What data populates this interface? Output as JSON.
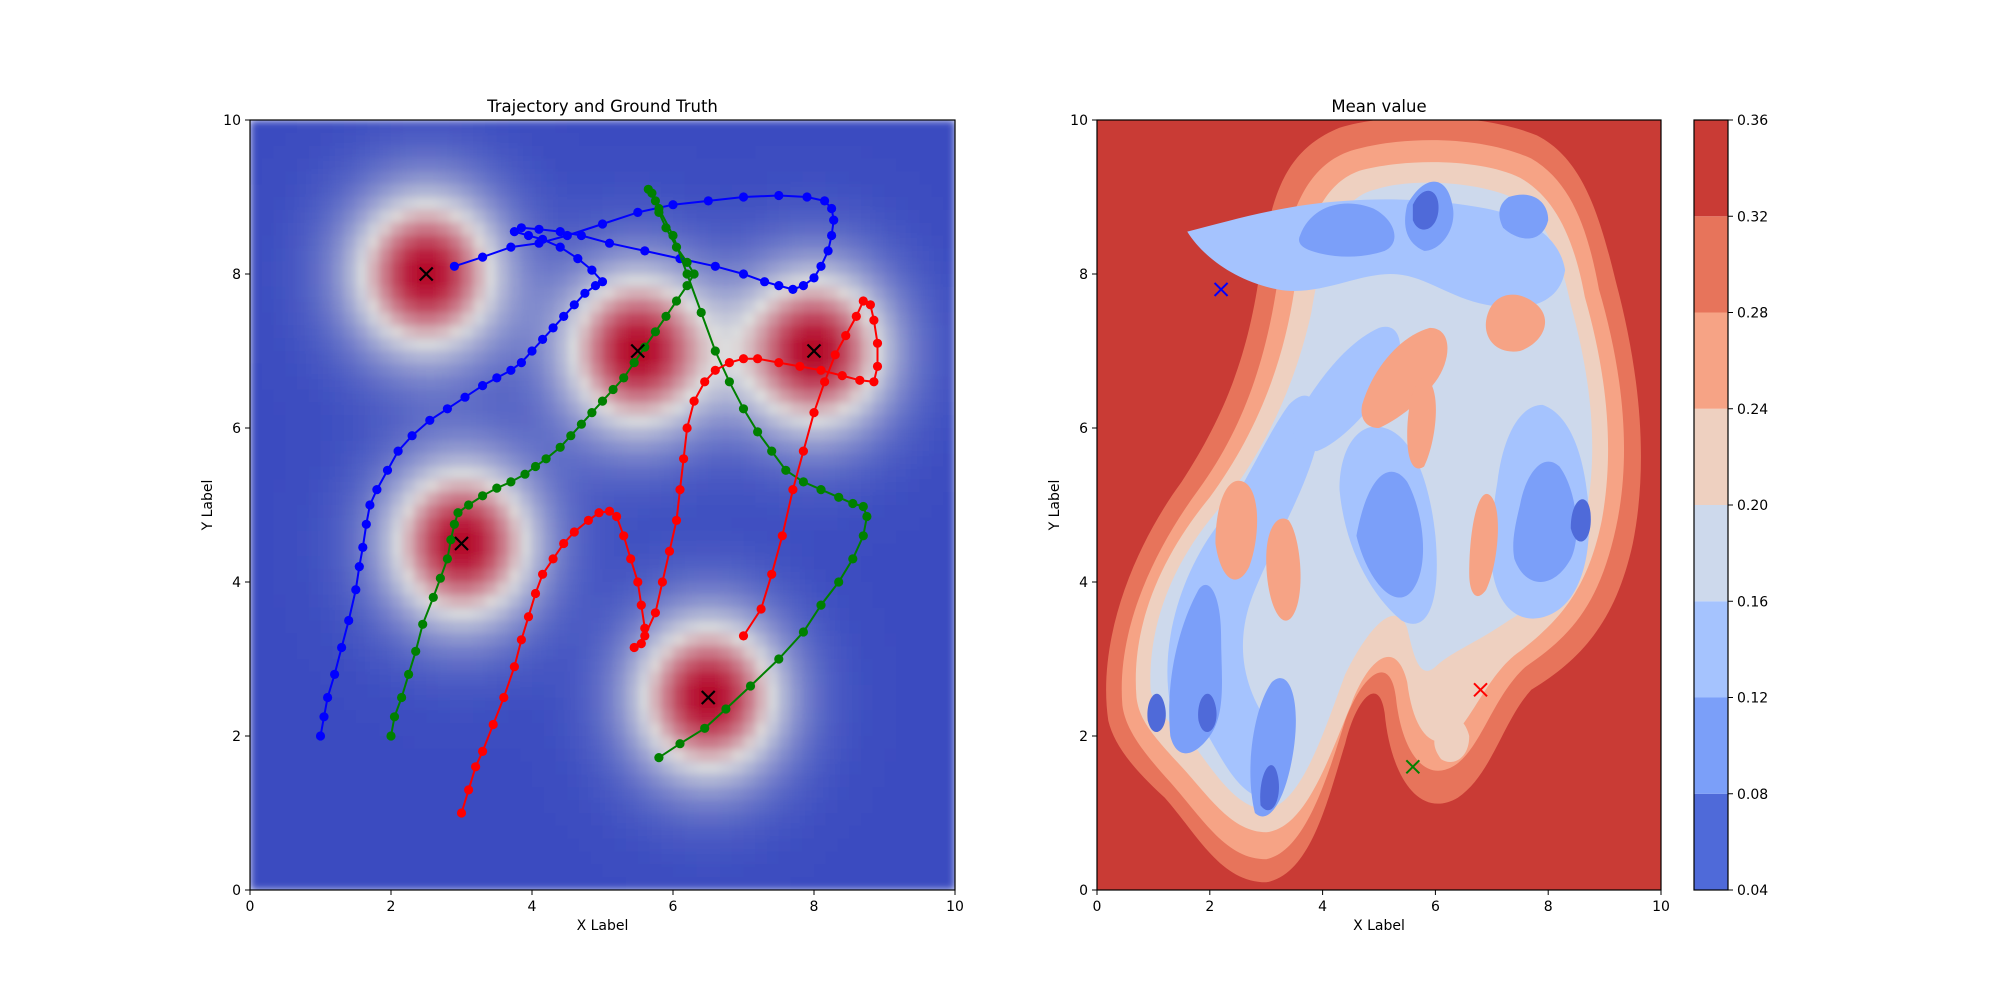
{
  "colors": {
    "cool": "#3b4cc0",
    "mid": "#dddddd",
    "warm": "#b40426",
    "blue_series": "#0000ff",
    "green_series": "#008000",
    "red_series": "#ff0000",
    "target_marker": "#000000"
  },
  "chart_data": [
    {
      "type": "line",
      "title": "Trajectory and Ground Truth",
      "xlabel": "X Label",
      "ylabel": "Y Label",
      "xlim": [
        0,
        10
      ],
      "ylim": [
        0,
        10
      ],
      "xticks": [
        0,
        2,
        4,
        6,
        8,
        10
      ],
      "yticks": [
        0,
        2,
        4,
        6,
        8,
        10
      ],
      "background": "heatmap (coolwarm) of Gaussian bumps centred on the ground-truth points",
      "ground_truth": [
        {
          "x": 2.5,
          "y": 8.0
        },
        {
          "x": 5.5,
          "y": 7.0
        },
        {
          "x": 8.0,
          "y": 7.0
        },
        {
          "x": 3.0,
          "y": 4.5
        },
        {
          "x": 6.5,
          "y": 2.5
        }
      ],
      "series": [
        {
          "color": "blue",
          "points": [
            [
              1.0,
              2.0
            ],
            [
              1.05,
              2.25
            ],
            [
              1.1,
              2.5
            ],
            [
              1.2,
              2.8
            ],
            [
              1.3,
              3.15
            ],
            [
              1.4,
              3.5
            ],
            [
              1.5,
              3.9
            ],
            [
              1.55,
              4.2
            ],
            [
              1.6,
              4.45
            ],
            [
              1.65,
              4.75
            ],
            [
              1.7,
              5.0
            ],
            [
              1.8,
              5.2
            ],
            [
              1.95,
              5.45
            ],
            [
              2.1,
              5.7
            ],
            [
              2.3,
              5.9
            ],
            [
              2.55,
              6.1
            ],
            [
              2.8,
              6.25
            ],
            [
              3.05,
              6.4
            ],
            [
              3.3,
              6.55
            ],
            [
              3.5,
              6.65
            ],
            [
              3.7,
              6.75
            ],
            [
              3.85,
              6.85
            ],
            [
              4.0,
              7.0
            ],
            [
              4.15,
              7.15
            ],
            [
              4.3,
              7.3
            ],
            [
              4.45,
              7.45
            ],
            [
              4.6,
              7.6
            ],
            [
              4.75,
              7.75
            ],
            [
              4.9,
              7.85
            ],
            [
              5.0,
              7.9
            ],
            [
              4.85,
              8.05
            ],
            [
              4.65,
              8.2
            ],
            [
              4.4,
              8.35
            ],
            [
              4.15,
              8.45
            ],
            [
              3.95,
              8.5
            ],
            [
              3.75,
              8.55
            ],
            [
              3.85,
              8.6
            ],
            [
              4.1,
              8.58
            ],
            [
              4.4,
              8.55
            ],
            [
              4.7,
              8.5
            ],
            [
              5.1,
              8.4
            ],
            [
              5.6,
              8.3
            ],
            [
              6.1,
              8.2
            ],
            [
              6.6,
              8.1
            ],
            [
              7.0,
              8.0
            ],
            [
              7.3,
              7.9
            ],
            [
              7.5,
              7.85
            ],
            [
              7.7,
              7.8
            ],
            [
              7.85,
              7.85
            ],
            [
              8.0,
              7.95
            ],
            [
              8.1,
              8.1
            ],
            [
              8.2,
              8.3
            ],
            [
              8.25,
              8.5
            ],
            [
              8.28,
              8.7
            ],
            [
              8.25,
              8.85
            ],
            [
              8.15,
              8.95
            ],
            [
              7.9,
              9.0
            ],
            [
              7.5,
              9.02
            ],
            [
              7.0,
              9.0
            ],
            [
              6.5,
              8.95
            ],
            [
              6.0,
              8.9
            ],
            [
              5.5,
              8.8
            ],
            [
              5.0,
              8.65
            ],
            [
              4.5,
              8.5
            ],
            [
              4.1,
              8.4
            ],
            [
              3.7,
              8.35
            ],
            [
              3.3,
              8.22
            ],
            [
              2.9,
              8.1
            ]
          ]
        },
        {
          "color": "green",
          "points": [
            [
              2.0,
              2.0
            ],
            [
              2.05,
              2.25
            ],
            [
              2.15,
              2.5
            ],
            [
              2.25,
              2.8
            ],
            [
              2.35,
              3.1
            ],
            [
              2.45,
              3.45
            ],
            [
              2.6,
              3.8
            ],
            [
              2.7,
              4.05
            ],
            [
              2.8,
              4.3
            ],
            [
              2.85,
              4.55
            ],
            [
              2.9,
              4.75
            ],
            [
              2.95,
              4.9
            ],
            [
              3.1,
              5.0
            ],
            [
              3.3,
              5.12
            ],
            [
              3.5,
              5.22
            ],
            [
              3.7,
              5.3
            ],
            [
              3.9,
              5.4
            ],
            [
              4.05,
              5.5
            ],
            [
              4.2,
              5.6
            ],
            [
              4.4,
              5.75
            ],
            [
              4.55,
              5.9
            ],
            [
              4.7,
              6.05
            ],
            [
              4.85,
              6.2
            ],
            [
              5.0,
              6.35
            ],
            [
              5.15,
              6.5
            ],
            [
              5.3,
              6.65
            ],
            [
              5.45,
              6.85
            ],
            [
              5.6,
              7.05
            ],
            [
              5.75,
              7.25
            ],
            [
              5.9,
              7.45
            ],
            [
              6.05,
              7.65
            ],
            [
              6.2,
              7.85
            ],
            [
              6.3,
              8.0
            ],
            [
              6.2,
              8.15
            ],
            [
              6.05,
              8.35
            ],
            [
              5.9,
              8.6
            ],
            [
              5.8,
              8.8
            ],
            [
              5.75,
              8.95
            ],
            [
              5.7,
              9.05
            ],
            [
              5.65,
              9.1
            ],
            [
              5.8,
              8.85
            ],
            [
              6.0,
              8.5
            ],
            [
              6.2,
              8.0
            ],
            [
              6.4,
              7.5
            ],
            [
              6.6,
              7.0
            ],
            [
              6.8,
              6.6
            ],
            [
              7.0,
              6.25
            ],
            [
              7.2,
              5.95
            ],
            [
              7.4,
              5.7
            ],
            [
              7.6,
              5.45
            ],
            [
              7.85,
              5.3
            ],
            [
              8.1,
              5.2
            ],
            [
              8.35,
              5.1
            ],
            [
              8.55,
              5.02
            ],
            [
              8.7,
              4.98
            ],
            [
              8.75,
              4.85
            ],
            [
              8.7,
              4.6
            ],
            [
              8.55,
              4.3
            ],
            [
              8.35,
              4.0
            ],
            [
              8.1,
              3.7
            ],
            [
              7.85,
              3.35
            ],
            [
              7.5,
              3.0
            ],
            [
              7.1,
              2.65
            ],
            [
              6.75,
              2.35
            ],
            [
              6.45,
              2.1
            ],
            [
              6.1,
              1.9
            ],
            [
              5.8,
              1.72
            ]
          ]
        },
        {
          "color": "red",
          "points": [
            [
              3.0,
              1.0
            ],
            [
              3.1,
              1.3
            ],
            [
              3.2,
              1.6
            ],
            [
              3.3,
              1.8
            ],
            [
              3.45,
              2.15
            ],
            [
              3.6,
              2.5
            ],
            [
              3.75,
              2.9
            ],
            [
              3.85,
              3.25
            ],
            [
              3.95,
              3.55
            ],
            [
              4.05,
              3.85
            ],
            [
              4.15,
              4.1
            ],
            [
              4.3,
              4.3
            ],
            [
              4.45,
              4.5
            ],
            [
              4.6,
              4.65
            ],
            [
              4.8,
              4.8
            ],
            [
              4.95,
              4.9
            ],
            [
              5.1,
              4.92
            ],
            [
              5.2,
              4.85
            ],
            [
              5.3,
              4.6
            ],
            [
              5.4,
              4.3
            ],
            [
              5.5,
              4.0
            ],
            [
              5.55,
              3.7
            ],
            [
              5.6,
              3.4
            ],
            [
              5.55,
              3.2
            ],
            [
              5.45,
              3.15
            ],
            [
              5.6,
              3.3
            ],
            [
              5.75,
              3.6
            ],
            [
              5.85,
              4.0
            ],
            [
              5.95,
              4.4
            ],
            [
              6.05,
              4.8
            ],
            [
              6.1,
              5.2
            ],
            [
              6.15,
              5.6
            ],
            [
              6.2,
              6.0
            ],
            [
              6.3,
              6.35
            ],
            [
              6.45,
              6.6
            ],
            [
              6.6,
              6.75
            ],
            [
              6.8,
              6.85
            ],
            [
              7.0,
              6.9
            ],
            [
              7.2,
              6.9
            ],
            [
              7.5,
              6.85
            ],
            [
              7.8,
              6.8
            ],
            [
              8.1,
              6.75
            ],
            [
              8.4,
              6.68
            ],
            [
              8.65,
              6.62
            ],
            [
              8.85,
              6.6
            ],
            [
              8.9,
              6.8
            ],
            [
              8.9,
              7.1
            ],
            [
              8.85,
              7.4
            ],
            [
              8.8,
              7.6
            ],
            [
              8.7,
              7.65
            ],
            [
              8.6,
              7.45
            ],
            [
              8.45,
              7.2
            ],
            [
              8.3,
              6.95
            ],
            [
              8.15,
              6.6
            ],
            [
              8.0,
              6.2
            ],
            [
              7.85,
              5.7
            ],
            [
              7.7,
              5.2
            ],
            [
              7.55,
              4.6
            ],
            [
              7.4,
              4.1
            ],
            [
              7.25,
              3.65
            ],
            [
              7.0,
              3.3
            ]
          ]
        }
      ]
    },
    {
      "type": "contour",
      "title": "Mean value",
      "xlabel": "X Label",
      "ylabel": "Y Label",
      "xlim": [
        0,
        10
      ],
      "ylim": [
        0,
        10
      ],
      "xticks": [
        0,
        2,
        4,
        6,
        8,
        10
      ],
      "yticks": [
        0,
        2,
        4,
        6,
        8,
        10
      ],
      "levels": [
        0.04,
        0.08,
        0.12,
        0.16,
        0.2,
        0.24,
        0.28,
        0.32,
        0.36
      ],
      "level_colors": [
        "#4f6ad9",
        "#7b9ff9",
        "#a5c3fe",
        "#cdd9ec",
        "#eed0c0",
        "#f6a385",
        "#e7745b",
        "#c93b35"
      ],
      "colorbar_ticks": [
        "0.04",
        "0.08",
        "0.12",
        "0.16",
        "0.20",
        "0.24",
        "0.28",
        "0.32",
        "0.36"
      ],
      "markers": [
        {
          "x": 2.2,
          "y": 7.8,
          "color": "blue"
        },
        {
          "x": 6.8,
          "y": 2.6,
          "color": "red"
        },
        {
          "x": 5.6,
          "y": 1.6,
          "color": "green"
        }
      ]
    }
  ]
}
